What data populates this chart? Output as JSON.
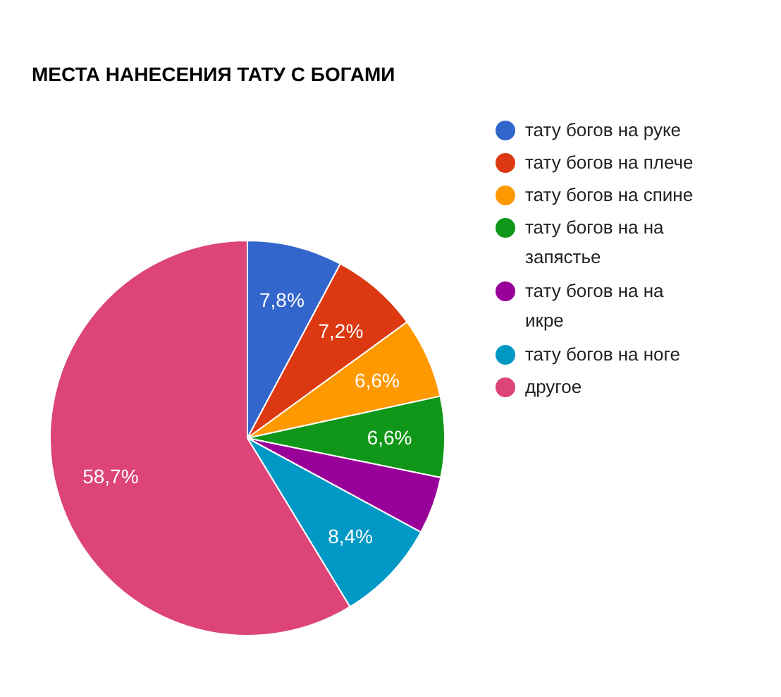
{
  "chart_data": {
    "type": "pie",
    "title": "МЕСТА НАНЕСЕНИЯ ТАТУ С БОГАМИ",
    "categories": [
      "тату богов на руке",
      "тату богов на плече",
      "тату богов на спине",
      "тату богов на на запястье",
      "тату богов на на икре",
      "тату богов на ноге",
      "другое"
    ],
    "values": [
      7.8,
      7.2,
      6.6,
      6.6,
      4.7,
      8.4,
      58.7
    ],
    "colors": [
      "#3366cc",
      "#dc3912",
      "#ff9900",
      "#109618",
      "#990099",
      "#0099c6",
      "#dd4477"
    ],
    "value_labels": [
      "7,8%",
      "7,2%",
      "6,6%",
      "6,6%",
      null,
      "8,4%",
      "58,7%"
    ],
    "legend": "right"
  }
}
